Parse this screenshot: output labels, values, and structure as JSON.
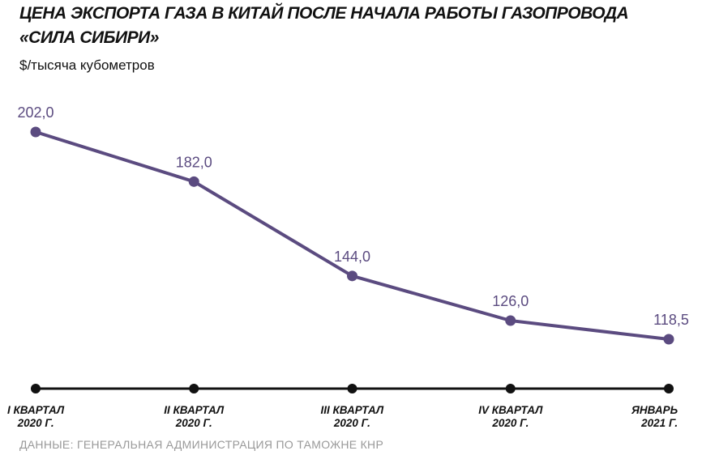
{
  "chart_data": {
    "type": "line",
    "title": "ЦЕНА ЭКСПОРТА ГАЗА В КИТАЙ ПОСЛЕ НАЧАЛА РАБОТЫ ГАЗОПРОВОДА\n«СИЛА СИБИРИ»",
    "subtitle": "$/тысяча кубометров",
    "categories": [
      "I КВАРТАЛ\n2020 Г.",
      "II КВАРТАЛ\n2020 Г.",
      "III КВАРТАЛ\n2020 Г.",
      "IV КВАРТАЛ\n2020 Г.",
      "ЯНВАРЬ\n2021 Г."
    ],
    "values": [
      202.0,
      182.0,
      144.0,
      126.0,
      118.5
    ],
    "value_labels": [
      "202,0",
      "182,0",
      "144,0",
      "126,0",
      "118,5"
    ],
    "color": "#5b4b80",
    "source": "ДАННЫЕ: ГЕНЕРАЛЬНАЯ АДМИНИСТРАЦИЯ ПО ТАМОЖНЕ КНР"
  }
}
